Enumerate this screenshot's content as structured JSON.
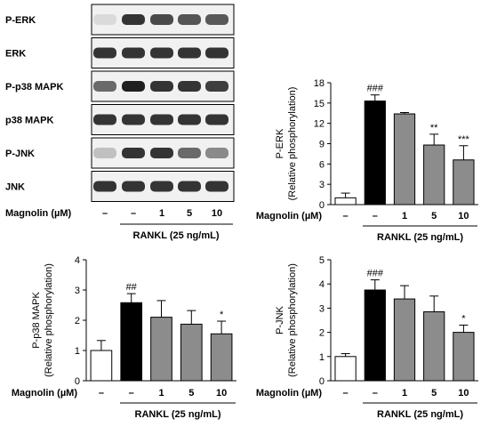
{
  "blot": {
    "rows": [
      {
        "label": "P-ERK"
      },
      {
        "label": "ERK"
      },
      {
        "label": "P-p38 MAPK"
      },
      {
        "label": "p38 MAPK"
      },
      {
        "label": "P-JNK"
      },
      {
        "label": "JNK"
      }
    ],
    "treatment_label": "Magnolin (µM)",
    "lane_values": [
      "–",
      "–",
      "1",
      "5",
      "10"
    ],
    "group_label": "RANKL (25 ng/mL)",
    "band_intensity": [
      [
        0.08,
        0.85,
        0.75,
        0.7,
        0.68
      ],
      [
        0.85,
        0.85,
        0.85,
        0.85,
        0.85
      ],
      [
        0.6,
        0.95,
        0.85,
        0.85,
        0.8
      ],
      [
        0.85,
        0.85,
        0.85,
        0.85,
        0.85
      ],
      [
        0.2,
        0.85,
        0.85,
        0.6,
        0.45
      ],
      [
        0.85,
        0.85,
        0.85,
        0.85,
        0.85
      ]
    ]
  },
  "chart_data": [
    {
      "type": "bar",
      "ylabel_main": "P-ERK",
      "ylabel_sub": "(Relative phosphorylation)",
      "ylim": [
        0,
        18
      ],
      "yticks": [
        "0",
        "3",
        "6",
        "9",
        "12",
        "15",
        "18"
      ],
      "categories": [
        "–",
        "–",
        "1",
        "5",
        "10"
      ],
      "values": [
        1.0,
        15.3,
        13.4,
        8.8,
        6.6
      ],
      "errors": [
        0.7,
        0.9,
        0.2,
        1.6,
        2.1
      ],
      "significance": [
        "",
        "###",
        "",
        "**",
        "***"
      ],
      "bar_colors": [
        "#ffffff",
        "#000000",
        "#8c8c8c",
        "#8c8c8c",
        "#8c8c8c"
      ],
      "xlabel_treatment": "Magnolin (µM)",
      "group_label": "RANKL (25 ng/mL)"
    },
    {
      "type": "bar",
      "ylabel_main": "P-p38 MAPK",
      "ylabel_sub": "(Relative phosphorylation)",
      "ylim": [
        0,
        4
      ],
      "yticks": [
        "0",
        "1",
        "2",
        "3",
        "4"
      ],
      "categories": [
        "–",
        "–",
        "1",
        "5",
        "10"
      ],
      "values": [
        1.0,
        2.58,
        2.1,
        1.87,
        1.55
      ],
      "errors": [
        0.33,
        0.3,
        0.55,
        0.45,
        0.42
      ],
      "significance": [
        "",
        "##",
        "",
        "",
        "*"
      ],
      "bar_colors": [
        "#ffffff",
        "#000000",
        "#8c8c8c",
        "#8c8c8c",
        "#8c8c8c"
      ],
      "xlabel_treatment": "Magnolin (µM)",
      "group_label": "RANKL (25 ng/mL)"
    },
    {
      "type": "bar",
      "ylabel_main": "P-JNK",
      "ylabel_sub": "(Relative phosphorylation)",
      "ylim": [
        0,
        5
      ],
      "yticks": [
        "0",
        "1",
        "2",
        "3",
        "4",
        "5"
      ],
      "categories": [
        "–",
        "–",
        "1",
        "5",
        "10"
      ],
      "values": [
        1.0,
        3.75,
        3.38,
        2.85,
        2.0
      ],
      "errors": [
        0.12,
        0.42,
        0.55,
        0.65,
        0.3
      ],
      "significance": [
        "",
        "###",
        "",
        "",
        "*"
      ],
      "bar_colors": [
        "#ffffff",
        "#000000",
        "#8c8c8c",
        "#8c8c8c",
        "#8c8c8c"
      ],
      "xlabel_treatment": "Magnolin (µM)",
      "group_label": "RANKL (25 ng/mL)"
    }
  ]
}
